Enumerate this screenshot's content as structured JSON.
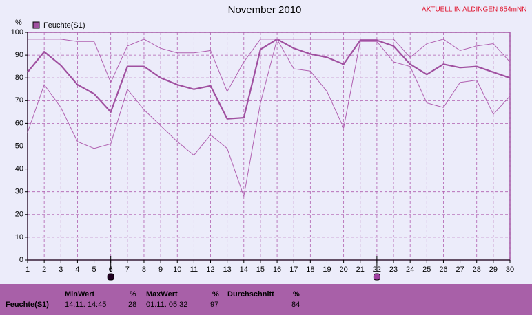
{
  "chart_data": {
    "type": "line",
    "title": "November 2010",
    "subtitle": "AKTUELL IN ALDINGEN 654mNN",
    "y_label": "%",
    "x": [
      1,
      2,
      3,
      4,
      5,
      6,
      7,
      8,
      9,
      10,
      11,
      12,
      13,
      14,
      15,
      16,
      17,
      18,
      19,
      20,
      21,
      22,
      23,
      24,
      25,
      26,
      27,
      28,
      29,
      30
    ],
    "series": [
      {
        "name": "Feuchte(S1)",
        "color": "#a050a0",
        "width": 2.2,
        "values": [
          82.5,
          91.5,
          85.5,
          77,
          73,
          65,
          85,
          85,
          80,
          77,
          75,
          76.5,
          62,
          62.5,
          92.5,
          97,
          93,
          90.5,
          89,
          86,
          96.5,
          96.5,
          94,
          86,
          81.5,
          86,
          84.5,
          85,
          82.5,
          80
        ]
      },
      {
        "color": "#b060b0",
        "width": 1,
        "values": [
          97,
          97,
          97,
          96,
          96,
          78,
          94,
          97,
          93,
          91,
          91,
          92,
          74,
          87,
          97,
          97,
          97,
          97,
          97,
          97,
          97,
          97,
          97,
          89,
          95,
          97,
          92,
          94,
          95,
          87
        ]
      },
      {
        "color": "#b060b0",
        "width": 1,
        "values": [
          56,
          77,
          67,
          52,
          49,
          51,
          75,
          66,
          59,
          52,
          46,
          55,
          49,
          28,
          69,
          97,
          84,
          83,
          74,
          58,
          96,
          96,
          87,
          85,
          69,
          67,
          78,
          79,
          64,
          72
        ]
      }
    ],
    "xlim": [
      1,
      30
    ],
    "xticks": [
      1,
      2,
      3,
      4,
      5,
      6,
      7,
      8,
      9,
      10,
      11,
      12,
      13,
      14,
      15,
      16,
      17,
      18,
      19,
      20,
      21,
      22,
      23,
      24,
      25,
      26,
      27,
      28,
      29,
      30
    ],
    "ylim": [
      0,
      100
    ],
    "yticks": [
      0,
      10,
      20,
      30,
      40,
      50,
      60,
      70,
      80,
      90,
      100
    ],
    "grid": true,
    "event_markers": [
      {
        "x": 6,
        "color": "#200020"
      },
      {
        "x": 22,
        "color": "#a040a0"
      }
    ]
  },
  "summary_table": {
    "headers": [
      "MinWert",
      "%",
      "MaxWert",
      "%",
      "Durchschnitt",
      "%"
    ],
    "rows": [
      [
        "Feuchte(S1)",
        "14.11.  14:45",
        "28",
        "01.11.  05:32",
        "97",
        "84"
      ]
    ]
  }
}
